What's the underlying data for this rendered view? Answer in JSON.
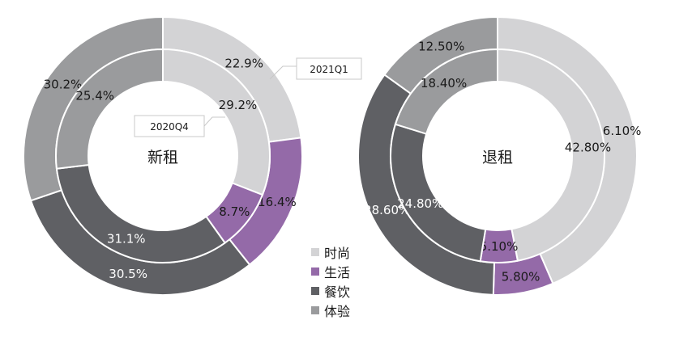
{
  "chart_data": {
    "type": "donut",
    "legend": [
      {
        "name": "时尚",
        "color": "#d3d3d5"
      },
      {
        "name": "生活",
        "color": "#946aa8"
      },
      {
        "name": "餐饮",
        "color": "#5f6064"
      },
      {
        "name": "体验",
        "color": "#9a9b9d"
      }
    ],
    "charts": [
      {
        "center_label": "新租",
        "outer": {
          "callout": "2021Q1",
          "values": [
            22.9,
            16.4,
            30.5,
            30.2
          ],
          "labels": [
            "22.9%",
            "16.4%",
            "30.5%",
            "30.2%"
          ]
        },
        "inner": {
          "callout": "2020Q4",
          "values": [
            29.2,
            8.7,
            31.1,
            25.4
          ],
          "labels": [
            "29.2%",
            "8.7%",
            "31.1%",
            "25.4%"
          ]
        }
      },
      {
        "center_label": "退租",
        "outer": {
          "values": [
            36.1,
            5.8,
            28.6,
            12.5
          ],
          "labels": [
            "36.10%",
            "5.80%",
            "28.60%",
            "12.50%"
          ]
        },
        "inner": {
          "values": [
            42.8,
            5.1,
            24.8,
            18.4
          ],
          "labels": [
            "42.80%",
            "5.10%",
            "24.80%",
            "18.40%"
          ]
        }
      }
    ]
  }
}
